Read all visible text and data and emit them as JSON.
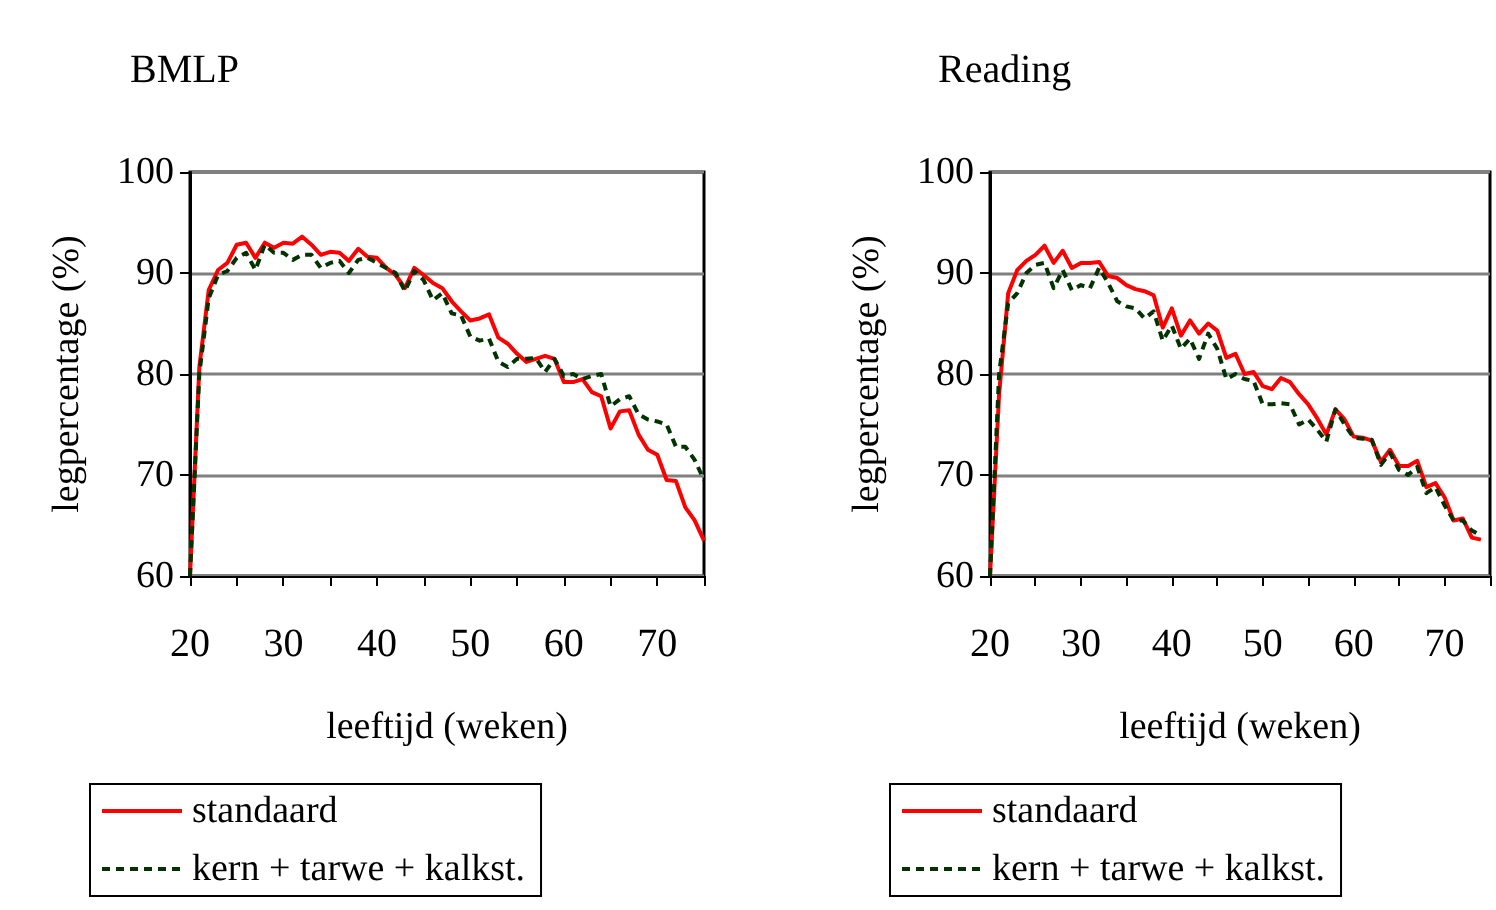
{
  "chart_data": [
    {
      "type": "line",
      "title": "BMLP",
      "xlabel": "leeftijd (weken)",
      "ylabel": "legpercentage (%)",
      "x": [
        20,
        21,
        22,
        23,
        24,
        25,
        26,
        27,
        28,
        29,
        30,
        31,
        32,
        33,
        34,
        35,
        36,
        37,
        38,
        39,
        40,
        41,
        42,
        43,
        44,
        45,
        46,
        47,
        48,
        49,
        50,
        51,
        52,
        53,
        54,
        55,
        56,
        57,
        58,
        59,
        60,
        61,
        62,
        63,
        64,
        65,
        66,
        67,
        68,
        69,
        70,
        71,
        72,
        73,
        74,
        75
      ],
      "xlim": [
        20,
        75
      ],
      "xticks": [
        20,
        {
          "value": 25,
          "label": null
        },
        30,
        {
          "value": 35,
          "label": null
        },
        40,
        {
          "value": 45,
          "label": null
        },
        50,
        {
          "value": 55,
          "label": null
        },
        60,
        {
          "value": 65,
          "label": null
        },
        70,
        {
          "value": 75,
          "label": null
        }
      ],
      "ylim": [
        60,
        100
      ],
      "yticks": [
        60,
        70,
        80,
        90,
        100
      ],
      "grid": "y",
      "legend": "bottom",
      "marker": "none",
      "series": [
        {
          "name": "standaard",
          "color": "#ff0000",
          "line_style": "solid",
          "values": [
            60,
            80.7,
            88.3,
            90.3,
            91.0,
            92.8,
            93.0,
            91.5,
            93.0,
            92.5,
            93.0,
            92.9,
            93.6,
            92.8,
            91.8,
            92.1,
            92.0,
            91.2,
            92.4,
            91.6,
            91.5,
            90.5,
            89.8,
            88.5,
            90.5,
            89.8,
            89.0,
            88.5,
            87.2,
            86.2,
            85.3,
            85.5,
            85.9,
            83.6,
            83.0,
            82.0,
            81.2,
            81.5,
            81.8,
            81.5,
            79.2,
            79.2,
            79.5,
            78.2,
            77.8,
            74.6,
            76.3,
            76.4,
            74.0,
            72.5,
            72.0,
            69.5,
            69.4,
            66.8,
            65.5,
            63.5
          ]
        },
        {
          "name": "kern + tarwe + kalkst.",
          "color": "#003300",
          "line_style": "dashed",
          "values": [
            60,
            80.0,
            87.5,
            89.8,
            90.2,
            91.5,
            92.0,
            90.3,
            92.8,
            92.0,
            92.0,
            91.3,
            91.8,
            91.8,
            90.5,
            91.0,
            91.2,
            90.0,
            91.3,
            91.5,
            91.0,
            90.5,
            90.0,
            88.2,
            90.2,
            89.3,
            87.3,
            88.0,
            86.0,
            85.8,
            83.7,
            83.3,
            83.5,
            81.2,
            80.7,
            81.5,
            81.5,
            81.6,
            80.2,
            81.5,
            79.8,
            80.0,
            79.5,
            79.8,
            80.0,
            76.8,
            77.5,
            77.8,
            76.0,
            75.5,
            75.3,
            75.0,
            72.8,
            72.8,
            71.5,
            69.5
          ]
        }
      ]
    },
    {
      "type": "line",
      "title": "Reading",
      "xlabel": "leeftijd (weken)",
      "ylabel": "legpercentage (%)",
      "x": [
        20,
        21,
        22,
        23,
        24,
        25,
        26,
        27,
        28,
        29,
        30,
        31,
        32,
        33,
        34,
        35,
        36,
        37,
        38,
        39,
        40,
        41,
        42,
        43,
        44,
        45,
        46,
        47,
        48,
        49,
        50,
        51,
        52,
        53,
        54,
        55,
        56,
        57,
        58,
        59,
        60,
        61,
        62,
        63,
        64,
        65,
        66,
        67,
        68,
        69,
        70,
        71,
        72,
        73,
        74
      ],
      "xlim": [
        20,
        75
      ],
      "xticks": [
        20,
        {
          "value": 25,
          "label": null
        },
        30,
        {
          "value": 35,
          "label": null
        },
        40,
        {
          "value": 45,
          "label": null
        },
        50,
        {
          "value": 55,
          "label": null
        },
        60,
        {
          "value": 65,
          "label": null
        },
        70,
        {
          "value": 75,
          "label": null
        }
      ],
      "ylim": [
        60,
        100
      ],
      "yticks": [
        60,
        70,
        80,
        90,
        100
      ],
      "grid": "y",
      "legend": "bottom",
      "marker": "none",
      "series": [
        {
          "name": "standaard",
          "color": "#ff0000",
          "line_style": "solid",
          "values": [
            60,
            78.0,
            88.0,
            90.3,
            91.2,
            91.8,
            92.7,
            91.0,
            92.2,
            90.5,
            91.0,
            91.0,
            91.1,
            89.7,
            89.5,
            88.8,
            88.4,
            88.2,
            87.8,
            84.6,
            86.5,
            83.8,
            85.3,
            84.0,
            85.0,
            84.3,
            81.6,
            82.0,
            80.0,
            80.2,
            78.8,
            78.5,
            79.6,
            79.2,
            78.0,
            77.0,
            75.6,
            74.0,
            76.5,
            75.5,
            73.8,
            73.7,
            73.4,
            71.3,
            72.5,
            70.9,
            70.9,
            71.4,
            68.8,
            69.2,
            67.8,
            65.5,
            65.7,
            63.8,
            63.6
          ]
        },
        {
          "name": "kern + tarwe + kalkst.",
          "color": "#003300",
          "line_style": "dashed",
          "values": [
            60,
            80.0,
            87.0,
            88.0,
            90.0,
            90.8,
            91.0,
            88.5,
            90.3,
            88.3,
            88.8,
            88.5,
            90.5,
            89.0,
            87.2,
            86.7,
            86.5,
            85.5,
            86.2,
            83.3,
            84.8,
            82.5,
            83.5,
            81.5,
            84.0,
            82.5,
            79.5,
            80.0,
            79.5,
            79.3,
            77.0,
            77.0,
            77.1,
            77.0,
            75.0,
            75.5,
            74.5,
            73.3,
            76.5,
            75.0,
            73.7,
            73.6,
            73.5,
            71.0,
            72.2,
            70.5,
            70.0,
            70.8,
            68.2,
            68.8,
            67.0,
            65.5,
            65.5,
            64.5,
            64.0
          ]
        }
      ]
    }
  ]
}
